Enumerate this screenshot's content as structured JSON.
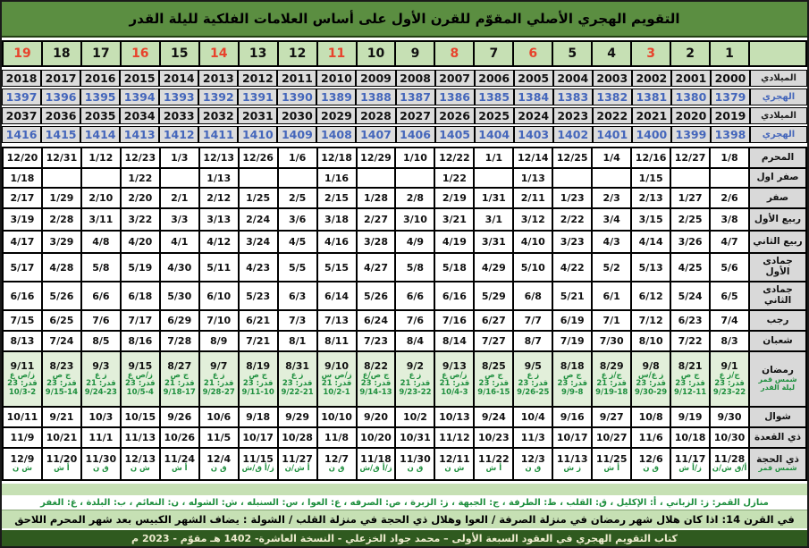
{
  "title": "التقويم الهجري الأصلي المقوّم للقرن الأول على أساس العلامات الفلكية لليلة القدر",
  "colors": {
    "title_bg": "#5b8e41",
    "header_cell_bg": "#c6e0b4",
    "red": "#e8432c",
    "hijri_blue": "#4466bb",
    "green_text": "#1e8f3e",
    "ramadan_bg": "#e2efda",
    "note_bg": "#c6e0b4",
    "footer_bg": "#2f5a1f",
    "footer_text": "#eeeccf",
    "year_bg": "#dcdcdc",
    "label_bg": "#d9d9d9"
  },
  "header": {
    "numbers": [
      "19",
      "18",
      "17",
      "16",
      "15",
      "14",
      "13",
      "12",
      "11",
      "10",
      "9",
      "8",
      "7",
      "6",
      "5",
      "4",
      "3",
      "2",
      "1"
    ],
    "red_numbers": [
      "19",
      "16",
      "14",
      "11",
      "8",
      "6",
      "3"
    ],
    "corner_label": ""
  },
  "years": {
    "rows": [
      {
        "label": "الميلادي",
        "style": "greg",
        "values": [
          "2018",
          "2017",
          "2016",
          "2015",
          "2014",
          "2013",
          "2012",
          "2011",
          "2010",
          "2009",
          "2008",
          "2007",
          "2006",
          "2005",
          "2004",
          "2003",
          "2002",
          "2001",
          "2000"
        ]
      },
      {
        "label": "الهجري",
        "style": "hijri",
        "values": [
          "1397",
          "1396",
          "1395",
          "1394",
          "1393",
          "1392",
          "1391",
          "1390",
          "1389",
          "1388",
          "1387",
          "1386",
          "1385",
          "1384",
          "1383",
          "1382",
          "1381",
          "1380",
          "1379"
        ]
      },
      {
        "label": "الميلادي",
        "style": "greg",
        "values": [
          "2037",
          "2036",
          "2035",
          "2034",
          "2033",
          "2032",
          "2031",
          "2030",
          "2029",
          "2028",
          "2027",
          "2026",
          "2025",
          "2024",
          "2023",
          "2022",
          "2021",
          "2020",
          "2019"
        ]
      },
      {
        "label": "الهجري",
        "style": "hijri",
        "values": [
          "1416",
          "1415",
          "1414",
          "1413",
          "1412",
          "1411",
          "1410",
          "1409",
          "1408",
          "1407",
          "1406",
          "1405",
          "1404",
          "1403",
          "1402",
          "1401",
          "1400",
          "1399",
          "1398"
        ]
      }
    ]
  },
  "months": {
    "rows": [
      {
        "type": "simple",
        "label": "المحرم",
        "values": [
          "12/20",
          "12/31",
          "1/12",
          "12/23",
          "1/3",
          "12/13",
          "12/26",
          "1/6",
          "12/18",
          "12/29",
          "1/10",
          "12/22",
          "1/1",
          "12/14",
          "12/25",
          "1/4",
          "12/16",
          "12/27",
          "1/8"
        ]
      },
      {
        "type": "simple",
        "label": "صفر اول",
        "values": [
          "1/18",
          "",
          "",
          "1/22",
          "",
          "1/13",
          "",
          "",
          "1/16",
          "",
          "",
          "1/22",
          "",
          "1/13",
          "",
          "",
          "1/15",
          "",
          ""
        ]
      },
      {
        "type": "simple",
        "label": "صفر",
        "values": [
          "2/17",
          "1/29",
          "2/10",
          "2/20",
          "2/1",
          "2/12",
          "1/25",
          "2/5",
          "2/15",
          "1/28",
          "2/8",
          "2/19",
          "1/31",
          "2/11",
          "1/23",
          "2/3",
          "2/13",
          "1/27",
          "2/6"
        ]
      },
      {
        "type": "simple",
        "label": "ربيع الأول",
        "values": [
          "3/19",
          "2/28",
          "3/11",
          "3/22",
          "3/3",
          "3/13",
          "2/24",
          "3/6",
          "3/18",
          "2/27",
          "3/10",
          "3/21",
          "3/1",
          "3/12",
          "2/22",
          "3/4",
          "3/15",
          "2/25",
          "3/8"
        ]
      },
      {
        "type": "simple",
        "label": "ربيع الثاني",
        "values": [
          "4/17",
          "3/29",
          "4/8",
          "4/20",
          "4/1",
          "4/12",
          "3/24",
          "4/5",
          "4/16",
          "3/28",
          "4/9",
          "4/19",
          "3/31",
          "4/10",
          "3/23",
          "4/3",
          "4/14",
          "3/26",
          "4/7"
        ]
      },
      {
        "type": "simple",
        "label": "جمادى الأول",
        "values": [
          "5/17",
          "4/28",
          "5/8",
          "5/19",
          "4/30",
          "5/11",
          "4/23",
          "5/5",
          "5/15",
          "4/27",
          "5/8",
          "5/18",
          "4/29",
          "5/10",
          "4/22",
          "5/2",
          "5/13",
          "4/25",
          "5/6"
        ]
      },
      {
        "type": "simple",
        "label": "جمادى الثاني",
        "values": [
          "6/16",
          "5/26",
          "6/6",
          "6/18",
          "5/30",
          "6/10",
          "5/23",
          "6/3",
          "6/14",
          "5/26",
          "6/6",
          "6/16",
          "5/29",
          "6/8",
          "5/21",
          "6/1",
          "6/12",
          "5/24",
          "6/5"
        ]
      },
      {
        "type": "simple",
        "label": "رجب",
        "values": [
          "7/15",
          "6/25",
          "7/6",
          "7/17",
          "6/29",
          "7/10",
          "6/21",
          "7/3",
          "7/13",
          "6/24",
          "7/6",
          "7/16",
          "6/27",
          "7/7",
          "6/19",
          "7/1",
          "7/12",
          "6/23",
          "7/4"
        ]
      },
      {
        "type": "simple",
        "label": "شعبان",
        "values": [
          "8/13",
          "7/24",
          "8/5",
          "8/16",
          "7/28",
          "8/9",
          "7/21",
          "8/1",
          "8/11",
          "7/23",
          "8/4",
          "8/14",
          "7/27",
          "8/7",
          "7/19",
          "7/30",
          "8/10",
          "7/22",
          "8/3"
        ]
      },
      {
        "type": "ramadan",
        "label": "رمضان",
        "sub_labels": [
          "شمس قمر",
          "ليلة القدر"
        ],
        "cells": [
          [
            "9/11",
            "ز/ص ع",
            "قدر: 23",
            "10/3-2"
          ],
          [
            "8/23",
            "ج ص",
            "قدر: 23",
            "9/15-14"
          ],
          [
            "9/3",
            "ز ع",
            "قدر: 21",
            "9/24-23"
          ],
          [
            "9/15",
            "ز/ص ع",
            "قدر: 23",
            "10/5-4"
          ],
          [
            "8/27",
            "ج ص",
            "قدر: 21",
            "9/18-17"
          ],
          [
            "9/7",
            "ز ع",
            "قدر: 21",
            "9/28-27"
          ],
          [
            "8/19",
            "ج ص",
            "قدر: 23",
            "9/11-10"
          ],
          [
            "8/31",
            "ز ع",
            "قدر: 23",
            "9/22-21"
          ],
          [
            "9/10",
            "ز/ص س",
            "قدر: 21",
            "10/2-1"
          ],
          [
            "8/22",
            "ج ص/ع",
            "قدر: 23",
            "9/14-13"
          ],
          [
            "9/2",
            "ز ع",
            "قدر: 21",
            "9/23-22"
          ],
          [
            "9/13",
            "ز/ص ع",
            "قدر: 21",
            "10/4-3"
          ],
          [
            "8/25",
            "ج ص",
            "قدر: 23",
            "9/16-15"
          ],
          [
            "9/5",
            "ز ع",
            "قدر: 23",
            "9/26-25"
          ],
          [
            "8/18",
            "ج ص",
            "قدر: 23",
            "9/9-8"
          ],
          [
            "8/29",
            "ج/ز ع",
            "قدر: 21",
            "9/19-18"
          ],
          [
            "9/8",
            "ز ع/س",
            "قدر: 23",
            "9/30-29"
          ],
          [
            "8/21",
            "ج ص",
            "قدر: 23",
            "9/12-11"
          ],
          [
            "9/1",
            "ج/ز ع",
            "قدر: 23",
            "9/23-22"
          ]
        ]
      },
      {
        "type": "simple",
        "label": "شوال",
        "values": [
          "10/11",
          "9/21",
          "10/3",
          "10/15",
          "9/26",
          "10/6",
          "9/18",
          "9/29",
          "10/10",
          "9/20",
          "10/2",
          "10/13",
          "9/24",
          "10/4",
          "9/16",
          "9/27",
          "10/8",
          "9/19",
          "9/30"
        ]
      },
      {
        "type": "simple",
        "label": "ذي القعدة",
        "values": [
          "11/9",
          "10/21",
          "11/1",
          "11/13",
          "10/26",
          "11/5",
          "10/17",
          "10/28",
          "11/8",
          "10/20",
          "10/31",
          "11/12",
          "10/23",
          "11/3",
          "10/17",
          "10/27",
          "11/6",
          "10/18",
          "10/30"
        ]
      },
      {
        "type": "dhulhijjah",
        "label": "ذي الحجة",
        "sub_labels": [
          "شمس قمر"
        ],
        "cells": [
          [
            "12/9",
            "ش ن"
          ],
          [
            "11/20",
            "أ ش"
          ],
          [
            "11/30",
            "ق ن"
          ],
          [
            "12/13",
            "ش ن"
          ],
          [
            "11/24",
            "أ ش"
          ],
          [
            "12/4",
            "ق ن"
          ],
          [
            "11/15",
            "ز/أ ق/ش"
          ],
          [
            "11/27",
            "أ ش/ن"
          ],
          [
            "12/7",
            "ق ن"
          ],
          [
            "11/18",
            "ز/أ ق/ش"
          ],
          [
            "11/30",
            "ق ن"
          ],
          [
            "12/11",
            "ش ن"
          ],
          [
            "11/22",
            "أ ش"
          ],
          [
            "12/3",
            "ق ن"
          ],
          [
            "11/13",
            "ز ش"
          ],
          [
            "11/25",
            "أ ش"
          ],
          [
            "12/6",
            "ق ن"
          ],
          [
            "11/17",
            "ز/أ ش"
          ],
          [
            "11/28",
            "أ/ق ش/ن"
          ]
        ]
      }
    ]
  },
  "footer_notes": {
    "legend": "منازل القمر:  ز: الزباني ، أ: الإكليل ، ق: القلب ، ط: الطرفة ، ج: الجبهة ، ز: الزبرة ، ص: الصرفه ، ع: العوا ، س: السنبله ، ش: الشوله ، ن: النعائم ، ب: البلدة ، غ: الغفر",
    "century_note": "في القرن 14: اذا كان هلال شهر رمضان في منزلة الصرفة / العوا وهلال ذي الحجة في منزلة القلب / الشولة  : يضاف الشهر الكبيس بعد شهر المحرم اللاحق",
    "book_line": "كتاب التقويم الهجري في العقود السبعة الأولى – محمد جواد الخزعلي  - النسخة العاشرة- 1402 هـ مقوّم - 2023 م"
  }
}
